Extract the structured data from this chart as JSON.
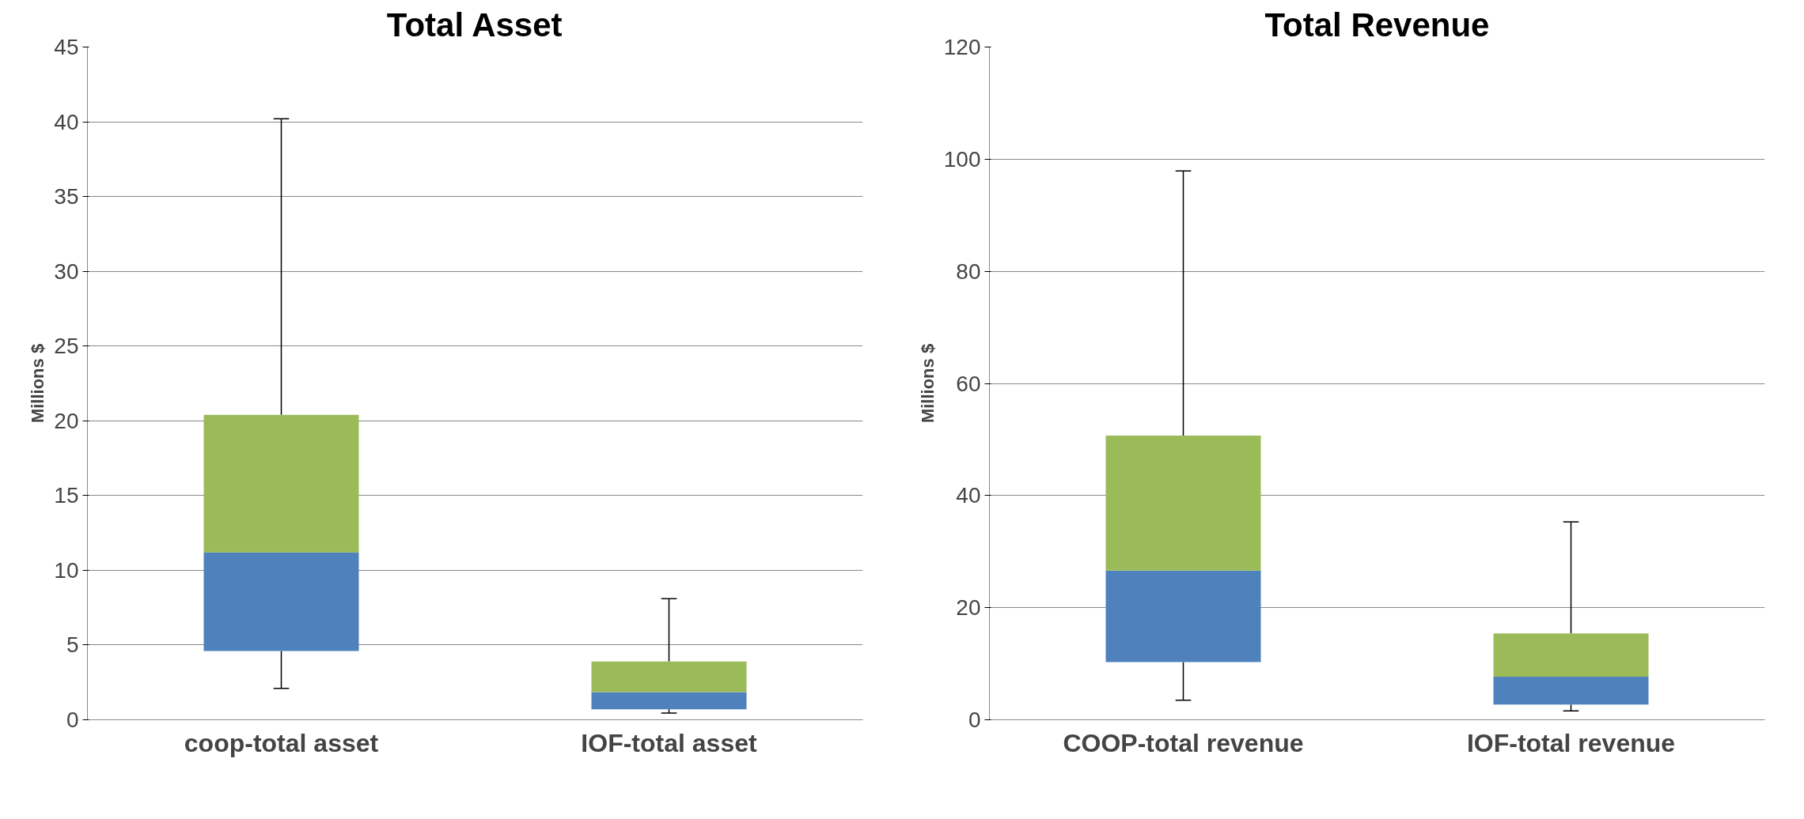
{
  "chart_data": [
    {
      "type": "box",
      "title": "Total Asset",
      "ylabel": "Millions $",
      "categories": [
        "coop-total asset",
        "IOF-total asset"
      ],
      "colors": [
        [
          "#4f81bd",
          "#9bbb59"
        ],
        [
          "#4f81bd",
          "#9bbb59"
        ]
      ],
      "boxes": [
        {
          "low": 2.1,
          "q1": 4.6,
          "median": 11.2,
          "q3": 20.4,
          "high": 40.2
        },
        {
          "low": 0.45,
          "q1": 0.7,
          "median": 1.85,
          "q3": 3.9,
          "high": 8.1
        }
      ],
      "ylim": [
        0,
        45
      ],
      "yticks": [
        0,
        5,
        10,
        15,
        20,
        25,
        30,
        35,
        40,
        45
      ],
      "grid": "y"
    },
    {
      "type": "box",
      "title": "Total Revenue",
      "ylabel": "Millions $",
      "categories": [
        "COOP-total revenue",
        "IOF-total revenue"
      ],
      "colors": [
        [
          "#4f81bd",
          "#9bbb59"
        ],
        [
          "#4f81bd",
          "#9bbb59"
        ]
      ],
      "boxes": [
        {
          "low": 3.5,
          "q1": 10.3,
          "median": 26.6,
          "q3": 50.7,
          "high": 97.9
        },
        {
          "low": 1.6,
          "q1": 2.7,
          "median": 7.7,
          "q3": 15.4,
          "high": 35.3
        }
      ],
      "ylim": [
        0,
        120
      ],
      "yticks": [
        0,
        20,
        40,
        60,
        80,
        100,
        120
      ],
      "grid": "y"
    }
  ]
}
